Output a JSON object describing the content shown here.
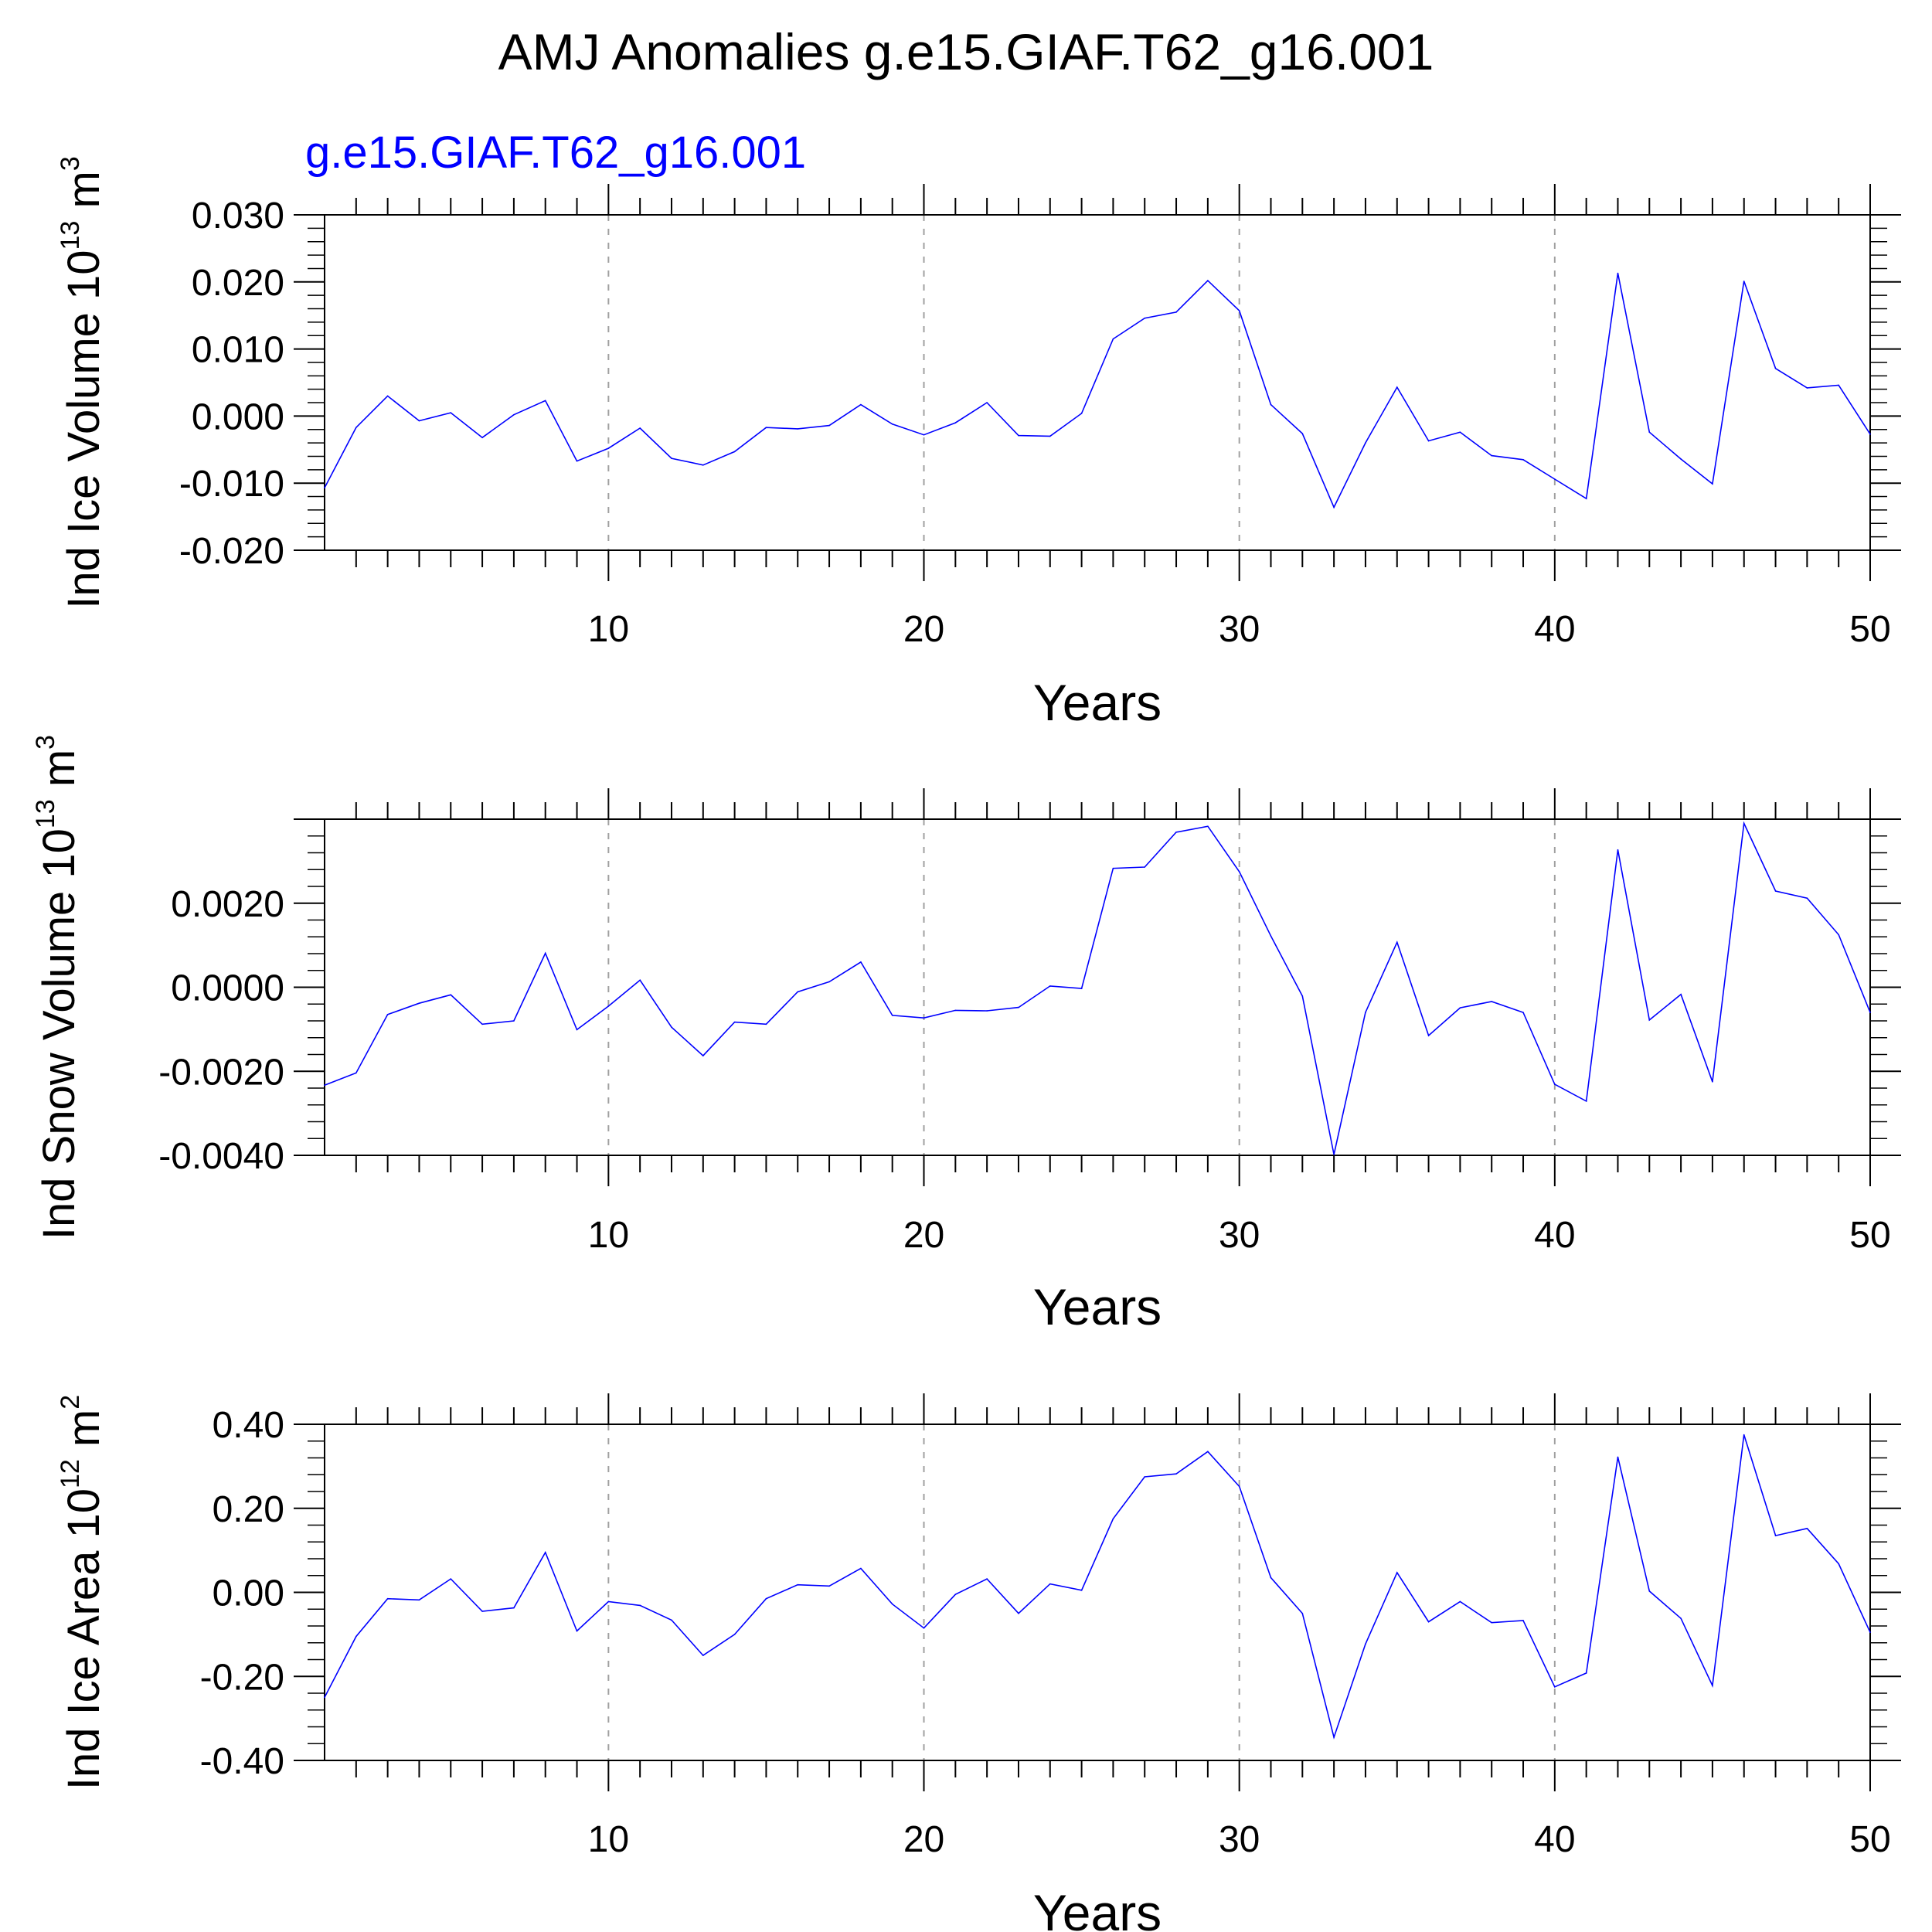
{
  "title": "AMJ Anomalies g.e15.GIAF.T62_g16.001",
  "subtitle": "g.e15.GIAF.T62_g16.001",
  "colors": {
    "line": "#0000ff",
    "subtitle": "#0000ff",
    "axis": "#000000",
    "grid": "#a0a0a0"
  },
  "chart_data": [
    {
      "type": "line",
      "xlabel": "Years",
      "ylabel": {
        "prefix": "Ind Ice Volume 10",
        "exp": "13",
        "unit": " m",
        "unit_exp": "3"
      },
      "xlim": [
        1,
        50
      ],
      "ylim": [
        -0.02,
        0.03
      ],
      "xticks": [
        10,
        20,
        30,
        40,
        50
      ],
      "yticks": [
        -0.02,
        -0.01,
        0.0,
        0.01,
        0.02,
        0.03
      ],
      "ytick_labels": [
        "-0.020",
        "-0.010",
        "0.000",
        "0.010",
        "0.020",
        "0.030"
      ],
      "grid": "dashed vertical at major x ticks",
      "series": [
        {
          "x": [
            1,
            2,
            3,
            4,
            5,
            6,
            7,
            8,
            9,
            10,
            11,
            12,
            13,
            14,
            15,
            16,
            17,
            18,
            19,
            20,
            21,
            22,
            23,
            24,
            25,
            26,
            27,
            28,
            29,
            30,
            31,
            32,
            33,
            34,
            35,
            36,
            37,
            38,
            39,
            40,
            41,
            42,
            43,
            44,
            45,
            46,
            47,
            48,
            49,
            50
          ],
          "values": [
            -0.0107,
            -0.0017,
            0.003,
            -0.0007,
            0.0005,
            -0.0032,
            0.0002,
            0.0023,
            -0.0067,
            -0.0048,
            -0.0018,
            -0.0063,
            -0.0073,
            -0.0053,
            -0.0017,
            -0.0019,
            -0.0014,
            0.0017,
            -0.0012,
            -0.0028,
            -0.001,
            0.002,
            -0.0029,
            -0.003,
            0.0004,
            0.0115,
            0.0146,
            0.0155,
            0.0202,
            0.0157,
            0.0017,
            -0.0026,
            -0.0136,
            -0.004,
            0.0043,
            -0.0037,
            -0.0024,
            -0.0059,
            -0.0065,
            -0.0094,
            -0.0123,
            0.0213,
            -0.0024,
            -0.0064,
            -0.0101,
            0.0201,
            0.0071,
            0.0042,
            0.0046,
            -0.0027
          ]
        }
      ]
    },
    {
      "type": "line",
      "xlabel": "Years",
      "ylabel": {
        "prefix": "Ind Snow Volume 10",
        "exp": "13",
        "unit": " m",
        "unit_exp": "3"
      },
      "xlim": [
        1,
        50
      ],
      "ylim": [
        -0.004,
        0.004
      ],
      "xticks": [
        10,
        20,
        30,
        40,
        50
      ],
      "yticks": [
        -0.004,
        -0.002,
        0.0,
        0.002
      ],
      "ytick_labels": [
        "-0.0040",
        "-0.0020",
        "0.0000",
        "0.0020"
      ],
      "grid": "dashed vertical at major x ticks",
      "series": [
        {
          "x": [
            1,
            2,
            3,
            4,
            5,
            6,
            7,
            8,
            9,
            10,
            11,
            12,
            13,
            14,
            15,
            16,
            17,
            18,
            19,
            20,
            21,
            22,
            23,
            24,
            25,
            26,
            27,
            28,
            29,
            30,
            31,
            32,
            33,
            34,
            35,
            36,
            37,
            38,
            39,
            40,
            41,
            42,
            43,
            44,
            45,
            46,
            47,
            48,
            49,
            50
          ],
          "values": [
            -0.00233,
            -0.00204,
            -0.00065,
            -0.00038,
            -0.00018,
            -0.00088,
            -0.0008,
            0.00081,
            -0.00101,
            -0.00045,
            0.00017,
            -0.00095,
            -0.00163,
            -0.00083,
            -0.00088,
            -0.00011,
            0.00013,
            0.0006,
            -0.00067,
            -0.00073,
            -0.00055,
            -0.00056,
            -0.00048,
            3e-05,
            -3e-05,
            0.00283,
            0.00286,
            0.00369,
            0.00383,
            0.00275,
            0.00122,
            -0.00021,
            -0.00398,
            -0.0006,
            0.00107,
            -0.00115,
            -0.00049,
            -0.00034,
            -0.0006,
            -0.00231,
            -0.00271,
            0.00327,
            -0.00078,
            -0.00017,
            -0.00225,
            0.0039,
            0.00229,
            0.00212,
            0.00125,
            -0.0006
          ]
        }
      ]
    },
    {
      "type": "line",
      "xlabel": "Years",
      "ylabel": {
        "prefix": "Ind Ice Area 10",
        "exp": "12",
        "unit": " m",
        "unit_exp": "2"
      },
      "xlim": [
        1,
        50
      ],
      "ylim": [
        -0.4,
        0.4
      ],
      "xticks": [
        10,
        20,
        30,
        40,
        50
      ],
      "yticks": [
        -0.4,
        -0.2,
        0.0,
        0.2,
        0.4
      ],
      "ytick_labels": [
        "-0.40",
        "-0.20",
        "0.00",
        "0.20",
        "0.40"
      ],
      "grid": "dashed vertical at major x ticks",
      "series": [
        {
          "x": [
            1,
            2,
            3,
            4,
            5,
            6,
            7,
            8,
            9,
            10,
            11,
            12,
            13,
            14,
            15,
            16,
            17,
            18,
            19,
            20,
            21,
            22,
            23,
            24,
            25,
            26,
            27,
            28,
            29,
            30,
            31,
            32,
            33,
            34,
            35,
            36,
            37,
            38,
            39,
            40,
            41,
            42,
            43,
            44,
            45,
            46,
            47,
            48,
            49,
            50
          ],
          "values": [
            -0.25,
            -0.105,
            -0.015,
            -0.018,
            0.032,
            -0.045,
            -0.037,
            0.095,
            -0.092,
            -0.022,
            -0.031,
            -0.066,
            -0.15,
            -0.1,
            -0.015,
            0.018,
            0.015,
            0.057,
            -0.028,
            -0.085,
            -0.005,
            0.032,
            -0.05,
            0.02,
            0.005,
            0.175,
            0.275,
            0.282,
            0.335,
            0.252,
            0.035,
            -0.05,
            -0.345,
            -0.123,
            0.047,
            -0.07,
            -0.022,
            -0.072,
            -0.067,
            -0.225,
            -0.192,
            0.322,
            0.003,
            -0.062,
            -0.222,
            0.375,
            0.135,
            0.152,
            0.068,
            -0.095
          ]
        }
      ]
    }
  ]
}
